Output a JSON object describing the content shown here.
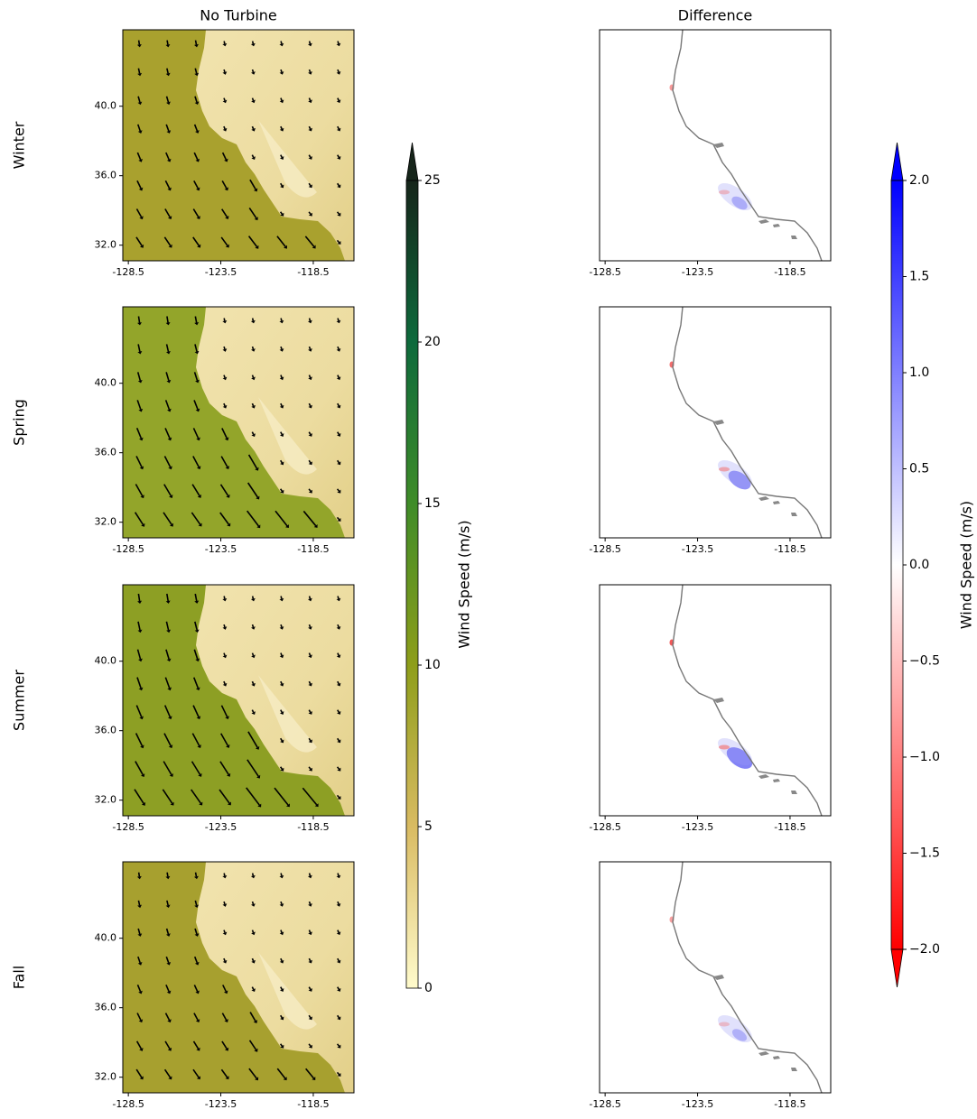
{
  "figure": {
    "column_titles": [
      "No Turbine",
      "Difference"
    ],
    "row_labels": [
      "Winter",
      "Spring",
      "Summer",
      "Fall"
    ],
    "map_xlim": [
      -128.8,
      -116.3
    ],
    "map_ylim": [
      31.1,
      44.4
    ],
    "map_xticks": [
      -128.5,
      -123.5,
      -118.5
    ],
    "map_yticks": [
      {
        "value": 32,
        "label": "32.0"
      },
      {
        "value": 36,
        "label": "36.0"
      },
      {
        "value": 40,
        "label": "40.0"
      }
    ],
    "colorbars": [
      {
        "label": "Wind Speed (m/s)",
        "lim": [
          0,
          25
        ],
        "ticks": [
          0,
          5,
          10,
          15,
          20,
          25
        ]
      },
      {
        "label": "Wind Speed (m/s)",
        "lim": [
          -2,
          2
        ],
        "ticks": [
          {
            "value": -2,
            "label": "−2.0"
          },
          {
            "value": -1.5,
            "label": "−1.5"
          },
          {
            "value": -1,
            "label": "−1.0"
          },
          {
            "value": -0.5,
            "label": "−0.5"
          },
          {
            "value": 0,
            "label": "0.0"
          },
          {
            "value": 0.5,
            "label": "0.5"
          },
          {
            "value": 1,
            "label": "1.0"
          },
          {
            "value": 1.5,
            "label": "1.5"
          },
          {
            "value": 2,
            "label": "2.0"
          }
        ]
      }
    ]
  }
}
